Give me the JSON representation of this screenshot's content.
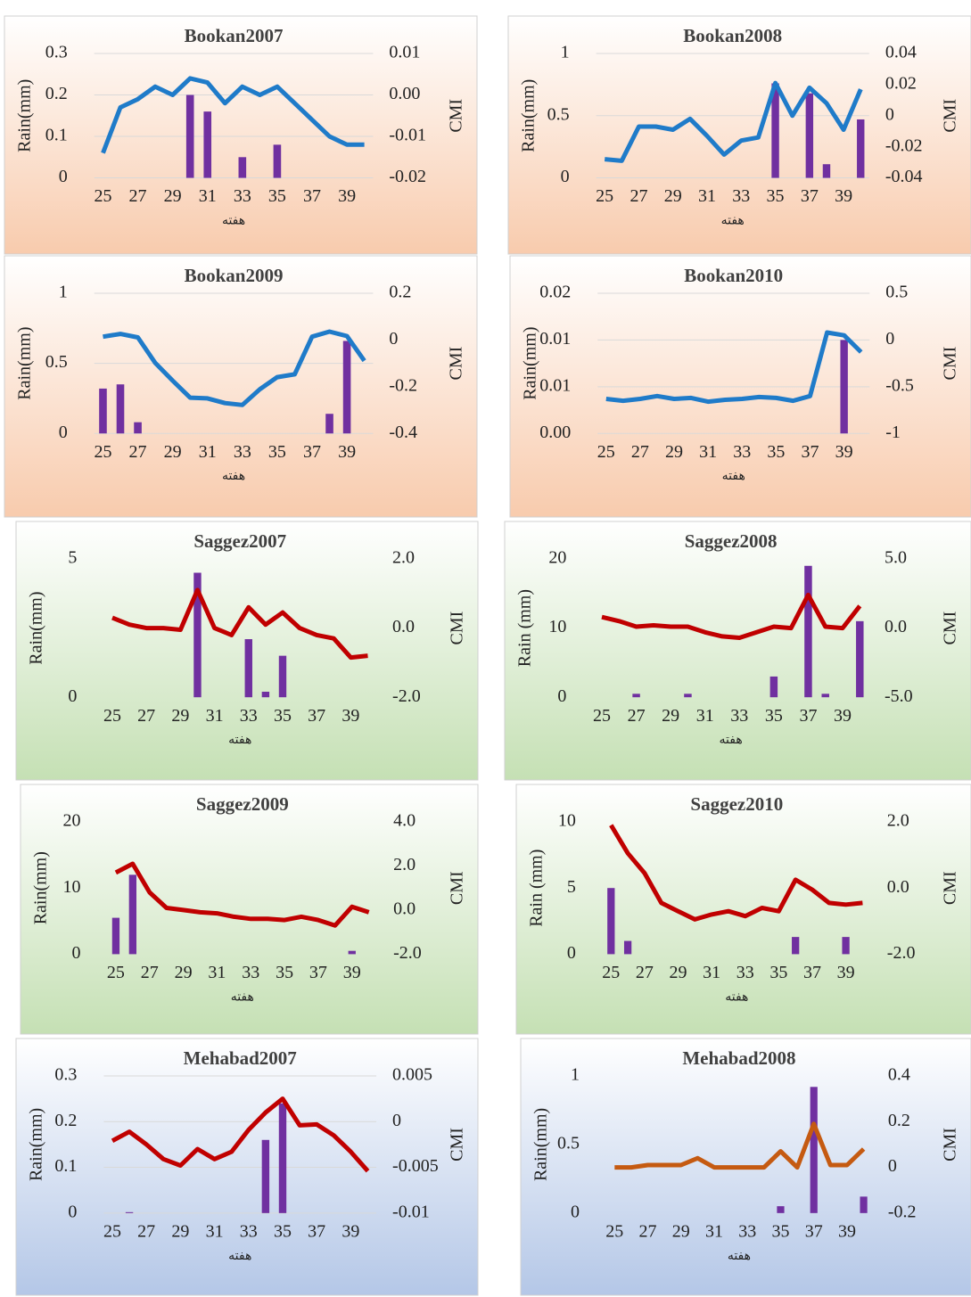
{
  "chart_data": [
    {
      "type": "combo",
      "title": "Bookan2007",
      "background": "#f8cbad",
      "grid": true,
      "categories": [
        "25",
        null,
        "27",
        null,
        "29",
        null,
        "31",
        null,
        "33",
        null,
        "35",
        null,
        "37",
        null,
        "39",
        null
      ],
      "x_label": "هفته",
      "y_label": "Rain(mm)",
      "y2_label": "CMI",
      "ylim": [
        0,
        0.3
      ],
      "yticks": [
        0,
        0.1,
        0.2,
        0.3
      ],
      "y2lim": [
        -0.02,
        0.01
      ],
      "y2ticks": [
        -0.02,
        -0.01,
        {
          "value": 0,
          "label": "0.00"
        },
        0.01
      ],
      "series": [
        {
          "type": "bar",
          "color": "#7030a0",
          "values": [
            0,
            0,
            0,
            0,
            0,
            0.2,
            0.16,
            0,
            0.05,
            0,
            0.08,
            0,
            0,
            0,
            0,
            0
          ]
        },
        {
          "type": "line",
          "axis": "y2",
          "color": "#1f7bc9",
          "values": [
            -0.014,
            -0.003,
            -0.001,
            0.002,
            0.0,
            0.004,
            0.003,
            -0.002,
            0.002,
            0.0,
            0.002,
            -0.002,
            -0.006,
            -0.01,
            -0.012,
            -0.012
          ]
        }
      ]
    },
    {
      "type": "combo",
      "title": "Bookan2008",
      "background": "#f8cbad",
      "grid": true,
      "categories": [
        "25",
        null,
        "27",
        null,
        "29",
        null,
        "31",
        null,
        "33",
        null,
        "35",
        null,
        "37",
        null,
        "39",
        null
      ],
      "x_label": "هفته",
      "y_label": "Rain(mm)",
      "y2_label": "CMI",
      "ylim": [
        0,
        1
      ],
      "yticks": [
        0,
        0.5,
        1
      ],
      "y2lim": [
        -0.04,
        0.04
      ],
      "y2ticks": [
        -0.04,
        -0.02,
        0,
        0.02,
        0.04
      ],
      "series": [
        {
          "type": "bar",
          "color": "#7030a0",
          "values": [
            0,
            0,
            0,
            0,
            0,
            0,
            0,
            0,
            0,
            0,
            0.76,
            0,
            0.68,
            0.11,
            0,
            0.47
          ]
        },
        {
          "type": "line",
          "axis": "y2",
          "color": "#1f7bc9",
          "values": [
            -0.028,
            -0.029,
            -0.007,
            -0.007,
            -0.009,
            -0.002,
            -0.013,
            -0.025,
            -0.016,
            -0.014,
            0.021,
            0.0,
            0.018,
            0.008,
            -0.009,
            0.017
          ]
        }
      ]
    },
    {
      "type": "combo",
      "title": "Bookan2009",
      "background": "#f8cbad",
      "grid": true,
      "categories": [
        "25",
        null,
        "27",
        null,
        "29",
        null,
        "31",
        null,
        "33",
        null,
        "35",
        null,
        "37",
        null,
        "39",
        null
      ],
      "x_label": "هفته",
      "y_label": "Rain(mm)",
      "y2_label": "CMI",
      "ylim": [
        0,
        1
      ],
      "yticks": [
        0,
        0.5,
        1
      ],
      "y2lim": [
        -0.4,
        0.2
      ],
      "y2ticks": [
        -0.4,
        -0.2,
        0,
        0.2
      ],
      "series": [
        {
          "type": "bar",
          "color": "#7030a0",
          "values": [
            0.32,
            0.35,
            0.08,
            0,
            0,
            0,
            0,
            0,
            0,
            0,
            0,
            0,
            0,
            0.14,
            0.66,
            0
          ]
        },
        {
          "type": "line",
          "axis": "y2",
          "color": "#1f7bc9",
          "values": [
            0.014,
            0.026,
            0.011,
            -0.098,
            -0.174,
            -0.247,
            -0.25,
            -0.27,
            -0.278,
            -0.211,
            -0.159,
            -0.147,
            0.014,
            0.036,
            0.017,
            -0.089
          ]
        }
      ]
    },
    {
      "type": "combo",
      "title": "Bookan2010",
      "background": "#f8cbad",
      "grid": true,
      "categories": [
        "25",
        null,
        "27",
        null,
        "29",
        null,
        "31",
        null,
        "33",
        null,
        "35",
        null,
        "37",
        null,
        "39",
        null
      ],
      "x_label": "هفته",
      "y_label": "Rain(mm)",
      "y2_label": "CMI",
      "ylim": [
        0,
        0.015
      ],
      "yticks": [
        {
          "value": 0,
          "label": "0.00"
        },
        {
          "value": 0.005,
          "label": "0.01"
        },
        {
          "value": 0.01,
          "label": "0.01"
        },
        {
          "value": 0.015,
          "label": "0.02"
        }
      ],
      "y2lim": [
        -1,
        0.5
      ],
      "y2ticks": [
        -1,
        -0.5,
        0,
        0.5
      ],
      "series": [
        {
          "type": "bar",
          "color": "#7030a0",
          "values": [
            0,
            0,
            0,
            0,
            0,
            0,
            0,
            0,
            0,
            0,
            0,
            0,
            0,
            0,
            0.01,
            0
          ]
        },
        {
          "type": "line",
          "axis": "y2",
          "color": "#1f7bc9",
          "values": [
            -0.63,
            -0.65,
            -0.63,
            -0.6,
            -0.63,
            -0.62,
            -0.66,
            -0.64,
            -0.63,
            -0.61,
            -0.62,
            -0.65,
            -0.6,
            0.08,
            0.05,
            -0.13
          ]
        }
      ]
    },
    {
      "type": "combo",
      "title": "Saggez2007",
      "background": "#c5e0b4",
      "grid": false,
      "categories": [
        "25",
        null,
        "27",
        null,
        "29",
        null,
        "31",
        null,
        "33",
        null,
        "35",
        null,
        "37",
        null,
        "39",
        null
      ],
      "x_label": "هفته",
      "y_label": "Rain(mm)",
      "y2_label": "CMI",
      "ylim": [
        0,
        5
      ],
      "yticks": [
        0,
        5
      ],
      "y2lim": [
        -2,
        2
      ],
      "y2ticks": [
        {
          "value": -2,
          "label": "-2.0"
        },
        {
          "value": 0,
          "label": "0.0"
        },
        {
          "value": 2,
          "label": "2.0"
        }
      ],
      "series": [
        {
          "type": "bar",
          "color": "#7030a0",
          "values": [
            0,
            0,
            0,
            0,
            0,
            4.5,
            0,
            0,
            2.1,
            0.2,
            1.5,
            0,
            0,
            0,
            0,
            0
          ]
        },
        {
          "type": "line",
          "axis": "y2",
          "color": "#c00000",
          "values": [
            0.3,
            0.1,
            0.0,
            0.0,
            -0.05,
            1.1,
            0.0,
            -0.2,
            0.6,
            0.1,
            0.45,
            0.0,
            -0.2,
            -0.3,
            -0.85,
            -0.8
          ]
        }
      ]
    },
    {
      "type": "combo",
      "title": "Saggez2008",
      "background": "#c5e0b4",
      "grid": false,
      "categories": [
        "25",
        null,
        "27",
        null,
        "29",
        null,
        "31",
        null,
        "33",
        null,
        "35",
        null,
        "37",
        null,
        "39",
        null
      ],
      "x_label": "هفته",
      "y_label": "Rain (mm)",
      "y2_label": "CMI",
      "ylim": [
        0,
        20
      ],
      "yticks": [
        0,
        10,
        20
      ],
      "y2lim": [
        -5,
        5
      ],
      "y2ticks": [
        {
          "value": -5,
          "label": "-5.0"
        },
        {
          "value": 0,
          "label": "0.0"
        },
        {
          "value": 5,
          "label": "5.0"
        }
      ],
      "series": [
        {
          "type": "bar",
          "color": "#7030a0",
          "values": [
            0,
            0,
            0.5,
            0,
            0,
            0.5,
            0,
            0,
            0,
            0,
            3,
            0,
            19,
            0.5,
            0,
            11
          ]
        },
        {
          "type": "line",
          "axis": "y2",
          "color": "#c00000",
          "values": [
            0.8,
            0.5,
            0.1,
            0.2,
            0.1,
            0.1,
            -0.3,
            -0.6,
            -0.7,
            -0.3,
            0.1,
            0.0,
            2.4,
            0.1,
            0.0,
            1.6
          ]
        }
      ]
    },
    {
      "type": "combo",
      "title": "Saggez2009",
      "background": "#c5e0b4",
      "grid": false,
      "categories": [
        "25",
        null,
        "27",
        null,
        "29",
        null,
        "31",
        null,
        "33",
        null,
        "35",
        null,
        "37",
        null,
        "39",
        null
      ],
      "x_label": "هفته",
      "y_label": "Rain(mm)",
      "y2_label": "CMI",
      "ylim": [
        0,
        20
      ],
      "yticks": [
        0,
        10,
        20
      ],
      "y2lim": [
        -2,
        4
      ],
      "y2ticks": [
        {
          "value": -2,
          "label": "-2.0"
        },
        {
          "value": 0,
          "label": "0.0"
        },
        {
          "value": 2,
          "label": "2.0"
        },
        {
          "value": 4,
          "label": "4.0"
        }
      ],
      "series": [
        {
          "type": "bar",
          "color": "#7030a0",
          "values": [
            5.5,
            12,
            0,
            0,
            0,
            0,
            0,
            0,
            0,
            0,
            0,
            0,
            0,
            0,
            0.5,
            0
          ]
        },
        {
          "type": "line",
          "axis": "y2",
          "color": "#c00000",
          "values": [
            1.7,
            2.1,
            0.8,
            0.1,
            0.0,
            -0.1,
            -0.15,
            -0.3,
            -0.4,
            -0.4,
            -0.45,
            -0.3,
            -0.45,
            -0.7,
            0.15,
            -0.1
          ]
        }
      ]
    },
    {
      "type": "combo",
      "title": "Saggez2010",
      "background": "#c5e0b4",
      "grid": false,
      "categories": [
        "25",
        null,
        "27",
        null,
        "29",
        null,
        "31",
        null,
        "33",
        null,
        "35",
        null,
        "37",
        null,
        "39",
        null
      ],
      "x_label": "هفته",
      "y_label": "Rain (mm)",
      "y2_label": "CMI",
      "ylim": [
        0,
        10
      ],
      "yticks": [
        0,
        5,
        10
      ],
      "y2lim": [
        -2,
        2
      ],
      "y2ticks": [
        {
          "value": -2,
          "label": "-2.0"
        },
        {
          "value": 0,
          "label": "0.0"
        },
        {
          "value": 2,
          "label": "2.0"
        }
      ],
      "series": [
        {
          "type": "bar",
          "color": "#7030a0",
          "values": [
            5,
            1,
            0,
            0,
            0,
            0,
            0,
            0,
            0,
            0,
            0,
            1.3,
            0,
            0,
            1.3,
            0
          ]
        },
        {
          "type": "line",
          "axis": "y2",
          "color": "#c00000",
          "values": [
            1.9,
            1.05,
            0.45,
            -0.45,
            -0.7,
            -0.95,
            -0.8,
            -0.7,
            -0.85,
            -0.6,
            -0.7,
            0.25,
            -0.05,
            -0.45,
            -0.5,
            -0.45
          ]
        }
      ]
    },
    {
      "type": "combo",
      "title": "Mehabad2007",
      "background": "#b4c7e7",
      "grid": true,
      "categories": [
        "25",
        null,
        "27",
        null,
        "29",
        null,
        "31",
        null,
        "33",
        null,
        "35",
        null,
        "37",
        null,
        "39",
        null
      ],
      "x_label": "هفته",
      "y_label": "Rain(mm)",
      "y2_label": "CMI",
      "ylim": [
        0,
        0.3
      ],
      "yticks": [
        0,
        0.1,
        0.2,
        0.3
      ],
      "y2lim": [
        -0.01,
        0.005
      ],
      "y2ticks": [
        -0.01,
        -0.005,
        0,
        0.005
      ],
      "series": [
        {
          "type": "bar",
          "color": "#7030a0",
          "values": [
            0,
            0.002,
            0,
            0,
            0,
            0,
            0,
            0,
            0,
            0.16,
            0.24,
            0,
            0,
            0,
            0,
            0
          ]
        },
        {
          "type": "line",
          "axis": "y2",
          "color": "#c00000",
          "values": [
            -0.0021,
            -0.0011,
            -0.0025,
            -0.0041,
            -0.0048,
            -0.003,
            -0.0041,
            -0.0033,
            -0.0009,
            0.001,
            0.0025,
            -0.0004,
            -0.0003,
            -0.0015,
            -0.0033,
            -0.0054
          ]
        }
      ]
    },
    {
      "type": "combo",
      "title": "Mehabad2008",
      "background": "#b4c7e7",
      "grid": false,
      "categories": [
        "25",
        null,
        "27",
        null,
        "29",
        null,
        "31",
        null,
        "33",
        null,
        "35",
        null,
        "37",
        null,
        "39",
        null
      ],
      "x_label": "هفته",
      "y_label": "Rain(mm)",
      "y2_label": "CMI",
      "ylim": [
        0,
        1
      ],
      "yticks": [
        0,
        0.5,
        1
      ],
      "y2lim": [
        -0.2,
        0.4
      ],
      "y2ticks": [
        -0.2,
        0,
        0.2,
        0.4
      ],
      "series": [
        {
          "type": "bar",
          "color": "#7030a0",
          "values": [
            0,
            0,
            0,
            0,
            0,
            0,
            0,
            0,
            0,
            0,
            0.05,
            0,
            0.92,
            0,
            0,
            0.12
          ]
        },
        {
          "type": "line",
          "axis": "y2",
          "color": "#c55a11",
          "values": [
            0,
            0,
            0.01,
            0.01,
            0.01,
            0.04,
            0,
            0,
            0,
            0,
            0.07,
            0,
            0.19,
            0.01,
            0.01,
            0.08
          ]
        }
      ]
    }
  ]
}
